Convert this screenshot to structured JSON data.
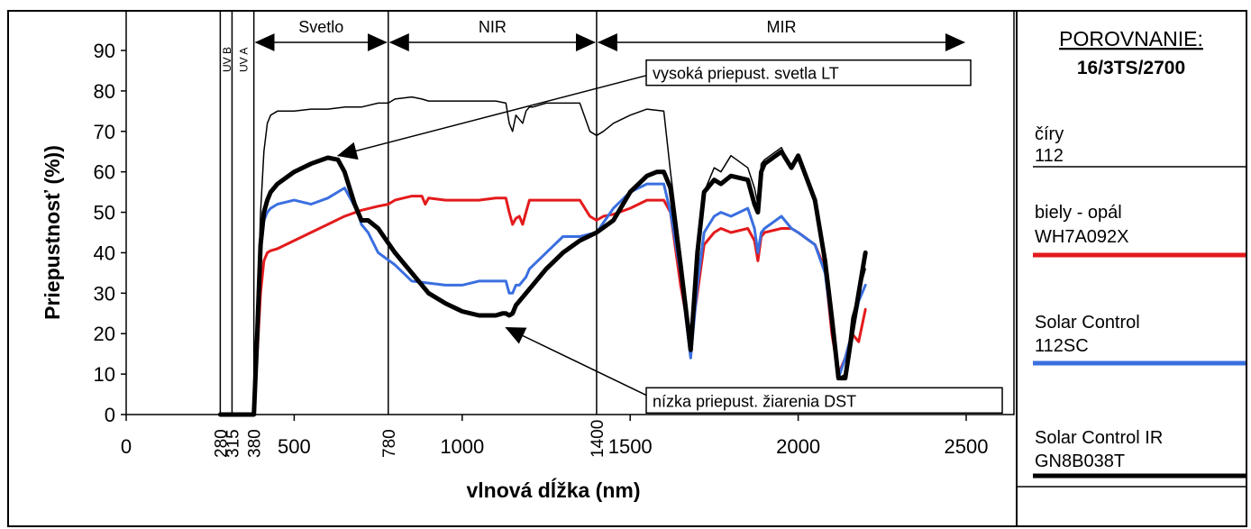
{
  "legend": {
    "title": "POROVNANIE:",
    "subtitle": "16/3TS/2700",
    "items": [
      {
        "line1": "číry",
        "line2": "112",
        "color": "#000000"
      },
      {
        "line1": "biely - opál",
        "line2": "WH7A092X",
        "color": "#e31a1c"
      },
      {
        "line1": "Solar Control",
        "line2": "112SC",
        "color": "#3a6fe0"
      },
      {
        "line1": "Solar Control IR",
        "line2": "GN8B038T",
        "color": "#000000"
      }
    ]
  },
  "chart_data": {
    "type": "line",
    "title": "",
    "xlabel": "vlnová dĺžka (nm)",
    "ylabel": "Priepustnosť (%))",
    "xlim": [
      0,
      2500
    ],
    "ylim": [
      0,
      90
    ],
    "y_ticks": [
      0,
      10,
      20,
      30,
      40,
      50,
      60,
      70,
      80,
      90
    ],
    "x_ticks": [
      0,
      500,
      1000,
      1500,
      2000,
      2500
    ],
    "x_ticks_rotated": [
      280,
      315,
      380,
      780,
      1400
    ],
    "grid": false,
    "legend_position": "right",
    "region_lines": [
      280,
      315,
      380,
      780,
      1400
    ],
    "regions": [
      {
        "label": "UV B",
        "x": 298,
        "arrows": false
      },
      {
        "label": "UV A",
        "x": 347,
        "arrows": false
      },
      {
        "label": "Svetlo",
        "x_start": 380,
        "x_end": 780,
        "arrows": true
      },
      {
        "label": "NIR",
        "x_start": 780,
        "x_end": 1400,
        "arrows": true
      },
      {
        "label": "MIR",
        "x_start": 1400,
        "x_end": 2500,
        "arrows": true
      }
    ],
    "annotations": [
      {
        "text": "vysoká priepust. svetla LT",
        "box_x": 1580,
        "box_y": 84.5,
        "arrow_to_x": 630,
        "arrow_to_y": 64
      },
      {
        "text": "nízka priepust. žiarenia DST",
        "box_x": 1580,
        "box_y": 3.5,
        "arrow_to_x": 1130,
        "arrow_to_y": 21.5
      }
    ],
    "series": [
      {
        "name": "číry 112",
        "color": "#000000",
        "width": 1.5,
        "x": [
          280,
          360,
          380,
          390,
          400,
          410,
          420,
          430,
          450,
          500,
          550,
          600,
          650,
          700,
          750,
          780,
          800,
          850,
          880,
          900,
          950,
          1000,
          1050,
          1100,
          1130,
          1140,
          1150,
          1160,
          1170,
          1180,
          1190,
          1200,
          1210,
          1250,
          1300,
          1350,
          1380,
          1400,
          1420,
          1450,
          1500,
          1550,
          1600,
          1620,
          1650,
          1680,
          1700,
          1720,
          1750,
          1770,
          1800,
          1850,
          1870,
          1880,
          1890,
          1900,
          1950,
          1980,
          2000,
          2050,
          2080,
          2100,
          2120,
          2140,
          2160,
          2180,
          2200
        ],
        "y": [
          0,
          0,
          0,
          25,
          50,
          65,
          72,
          74,
          75,
          75,
          75.5,
          75.5,
          76,
          76,
          77,
          77,
          78,
          78.5,
          78,
          77.5,
          77.5,
          77.5,
          77.5,
          77.5,
          77,
          72,
          70,
          74,
          73,
          72,
          75,
          76,
          76,
          77,
          77,
          77,
          70,
          69,
          70,
          72,
          74,
          75.5,
          75,
          60,
          40,
          17,
          35,
          55,
          61,
          60,
          64,
          61,
          56,
          52,
          62,
          63,
          66,
          61,
          63,
          52,
          36,
          24,
          9,
          10,
          24,
          30,
          36
        ]
      },
      {
        "name": "biely - opál WH7A092X",
        "color": "#e31a1c",
        "width": 3,
        "x": [
          280,
          360,
          380,
          390,
          400,
          410,
          420,
          430,
          450,
          500,
          550,
          600,
          650,
          700,
          750,
          780,
          800,
          850,
          880,
          890,
          900,
          950,
          1000,
          1050,
          1100,
          1130,
          1140,
          1150,
          1160,
          1170,
          1180,
          1190,
          1200,
          1250,
          1300,
          1350,
          1380,
          1400,
          1420,
          1450,
          1500,
          1550,
          1600,
          1620,
          1650,
          1680,
          1700,
          1720,
          1750,
          1770,
          1800,
          1850,
          1870,
          1880,
          1890,
          1900,
          1950,
          1980,
          2000,
          2050,
          2080,
          2100,
          2120,
          2140,
          2160,
          2180,
          2200
        ],
        "y": [
          0,
          0,
          0,
          15,
          30,
          38,
          40,
          40.5,
          41,
          43,
          45,
          47,
          49,
          50.5,
          51.5,
          52,
          53,
          54,
          54,
          52,
          53.5,
          53,
          53,
          53,
          53.5,
          53.5,
          50,
          47,
          48.5,
          49,
          47,
          50,
          53,
          53,
          53,
          53,
          49,
          48,
          49,
          49.5,
          51,
          53,
          53,
          50,
          32,
          18,
          30,
          42,
          45,
          46,
          45,
          46,
          43,
          38,
          44,
          45,
          46,
          46,
          45,
          42,
          36,
          20,
          10,
          14,
          20,
          18,
          26
        ]
      },
      {
        "name": "Solar Control 112SC",
        "color": "#3a6fe0",
        "width": 3,
        "x": [
          280,
          360,
          380,
          390,
          400,
          410,
          420,
          430,
          450,
          500,
          550,
          600,
          650,
          690,
          700,
          720,
          750,
          800,
          850,
          900,
          950,
          1000,
          1050,
          1100,
          1130,
          1140,
          1150,
          1160,
          1170,
          1180,
          1190,
          1200,
          1250,
          1300,
          1350,
          1400,
          1450,
          1500,
          1550,
          1600,
          1620,
          1650,
          1680,
          1700,
          1720,
          1750,
          1770,
          1800,
          1850,
          1870,
          1880,
          1890,
          1900,
          1950,
          1980,
          2000,
          2050,
          2080,
          2100,
          2120,
          2140,
          2160,
          2180,
          2200
        ],
        "y": [
          0,
          0,
          0,
          18,
          40,
          48,
          50,
          51,
          52,
          53,
          52,
          53.5,
          56,
          50,
          47,
          45,
          40,
          37,
          33,
          32.5,
          32,
          32,
          33,
          33,
          33,
          30,
          30,
          32,
          32,
          33,
          34,
          36,
          40,
          44,
          44,
          45,
          51,
          55,
          57,
          57,
          50,
          35,
          14,
          32,
          45,
          49,
          50,
          49,
          51,
          46,
          40,
          45,
          46,
          49,
          46,
          45,
          42,
          35,
          22,
          9,
          14,
          20,
          28,
          32
        ]
      },
      {
        "name": "Solar Control IR GN8B038T",
        "color": "#000000",
        "width": 5,
        "x": [
          280,
          360,
          380,
          390,
          400,
          410,
          420,
          430,
          450,
          500,
          550,
          600,
          630,
          650,
          680,
          700,
          720,
          750,
          800,
          850,
          900,
          950,
          1000,
          1050,
          1100,
          1120,
          1130,
          1140,
          1150,
          1160,
          1200,
          1250,
          1300,
          1350,
          1400,
          1450,
          1500,
          1550,
          1580,
          1600,
          1620,
          1650,
          1680,
          1700,
          1720,
          1750,
          1770,
          1800,
          1850,
          1870,
          1880,
          1890,
          1900,
          1950,
          1980,
          2000,
          2050,
          2080,
          2100,
          2120,
          2140,
          2160,
          2180,
          2200
        ],
        "y": [
          0,
          0,
          0,
          20,
          42,
          50,
          53,
          55,
          57,
          60,
          62,
          63.5,
          63,
          60,
          52,
          48,
          48,
          46,
          40,
          35,
          30,
          27.5,
          25.5,
          24.5,
          24.5,
          25,
          25,
          24.5,
          25,
          27,
          31,
          36,
          40,
          43,
          45,
          48,
          55,
          59,
          60,
          60,
          56,
          37,
          16,
          40,
          55,
          58,
          57,
          59,
          58,
          52,
          50,
          60,
          62,
          65,
          61,
          64,
          53,
          38,
          24,
          9,
          9,
          20,
          30,
          40
        ]
      }
    ]
  }
}
